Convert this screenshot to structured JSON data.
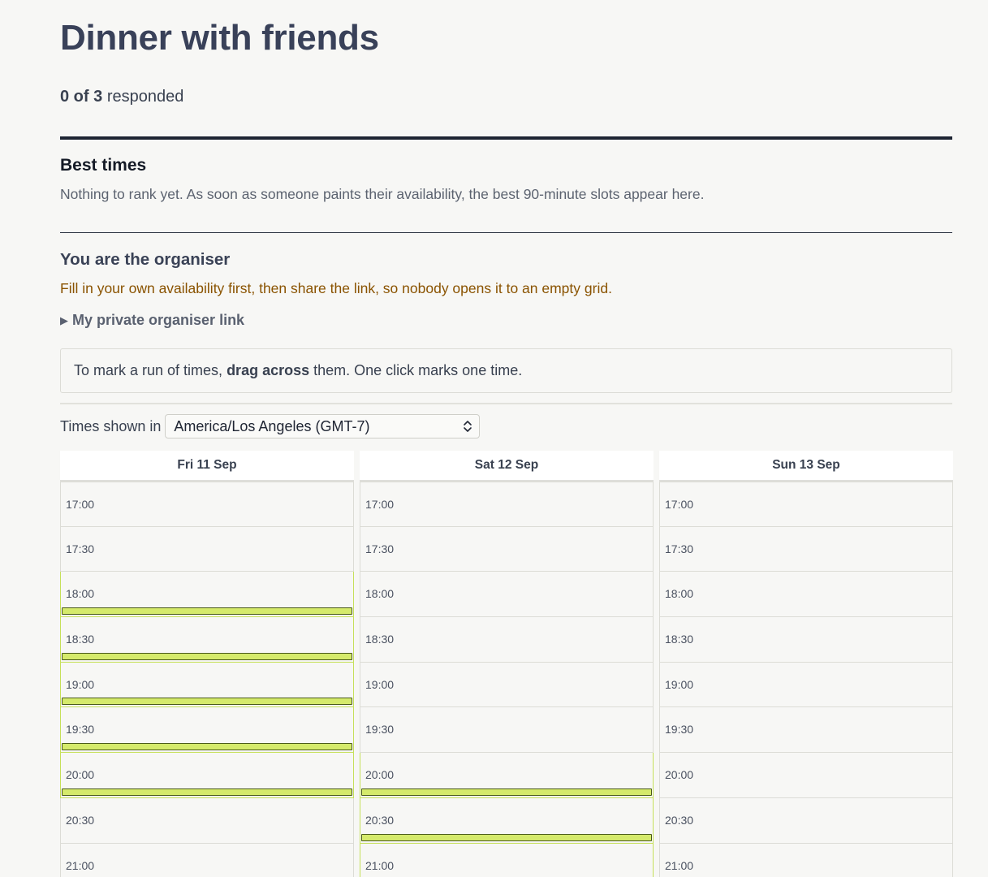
{
  "event": {
    "title": "Dinner with friends",
    "responded_count": "0 of 3",
    "responded_suffix": "responded"
  },
  "best_times": {
    "heading": "Best times",
    "description": "Nothing to rank yet. As soon as someone paints their availability, the best 90-minute slots appear here."
  },
  "organiser": {
    "heading": "You are the organiser",
    "warning": "Fill in your own availability first, then share the link, so nobody opens it to an empty grid.",
    "link_label": "My private organiser link",
    "link_icon": "triangle-right-icon"
  },
  "hint": {
    "before": "To mark a run of times,",
    "bold": "drag across",
    "after": "them. One click marks one time."
  },
  "timezone": {
    "label": "Times shown in",
    "selected": "America/Los Angeles (GMT-7)"
  },
  "colors": {
    "available_fill": "#d5ea6b",
    "available_border": "#c6e05a",
    "warning_text": "#8a5300"
  },
  "days": [
    {
      "label": "Fri 11 Sep",
      "slots": [
        {
          "time": "17:00",
          "available": false
        },
        {
          "time": "17:30",
          "available": false
        },
        {
          "time": "18:00",
          "available": true
        },
        {
          "time": "18:30",
          "available": true
        },
        {
          "time": "19:00",
          "available": true
        },
        {
          "time": "19:30",
          "available": true
        },
        {
          "time": "20:00",
          "available": true
        },
        {
          "time": "20:30",
          "available": false
        },
        {
          "time": "21:00",
          "available": false
        }
      ]
    },
    {
      "label": "Sat 12 Sep",
      "slots": [
        {
          "time": "17:00",
          "available": false
        },
        {
          "time": "17:30",
          "available": false
        },
        {
          "time": "18:00",
          "available": false
        },
        {
          "time": "18:30",
          "available": false
        },
        {
          "time": "19:00",
          "available": false
        },
        {
          "time": "19:30",
          "available": false
        },
        {
          "time": "20:00",
          "available": true
        },
        {
          "time": "20:30",
          "available": true
        },
        {
          "time": "21:00",
          "available": true
        }
      ]
    },
    {
      "label": "Sun 13 Sep",
      "slots": [
        {
          "time": "17:00",
          "available": false
        },
        {
          "time": "17:30",
          "available": false
        },
        {
          "time": "18:00",
          "available": false
        },
        {
          "time": "18:30",
          "available": false
        },
        {
          "time": "19:00",
          "available": false
        },
        {
          "time": "19:30",
          "available": false
        },
        {
          "time": "20:00",
          "available": false
        },
        {
          "time": "20:30",
          "available": false
        },
        {
          "time": "21:00",
          "available": false
        }
      ]
    }
  ]
}
